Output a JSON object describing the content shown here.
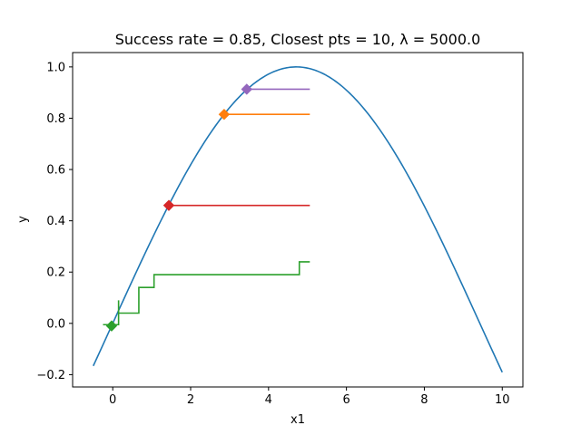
{
  "chart_data": {
    "type": "line",
    "title": "Success rate = 0.85, Closest pts = 10, λ = 5000.0",
    "xlabel": "x1",
    "ylabel": "y",
    "xlim": [
      -1.03,
      10.53
    ],
    "ylim": [
      -0.248,
      1.056
    ],
    "x_ticks": [
      0,
      2,
      4,
      6,
      8,
      10
    ],
    "x_tick_labels": [
      "0",
      "2",
      "4",
      "6",
      "8",
      "10"
    ],
    "y_ticks": [
      -0.2,
      0.0,
      0.2,
      0.4,
      0.6,
      0.8,
      1.0
    ],
    "y_tick_labels": [
      "−0.2",
      "0.0",
      "0.2",
      "0.4",
      "0.6",
      "0.8",
      "1.0"
    ],
    "grid": false,
    "curve": {
      "function": "sin(x/3)",
      "x_start": -0.5,
      "x_end": 10.0,
      "color": "#1f77b4"
    },
    "series": [
      {
        "color": "#2ca02c",
        "marker": {
          "x": -0.03,
          "y": -0.01
        },
        "points": [
          [
            -0.25,
            -0.005
          ],
          [
            -0.03,
            -0.005
          ],
          [
            -0.03,
            -0.005
          ],
          [
            0.15,
            -0.005
          ],
          [
            0.15,
            0.09
          ],
          [
            0.15,
            0.09
          ],
          [
            0.15,
            0.04
          ],
          [
            0.67,
            0.04
          ],
          [
            0.67,
            0.14
          ],
          [
            1.06,
            0.14
          ],
          [
            1.06,
            0.19
          ],
          [
            4.79,
            0.19
          ],
          [
            4.79,
            0.24
          ],
          [
            5.06,
            0.24
          ]
        ]
      },
      {
        "color": "#d62728",
        "marker": {
          "x": 1.44,
          "y": 0.46
        },
        "points": [
          [
            1.44,
            0.46
          ],
          [
            5.06,
            0.46
          ]
        ]
      },
      {
        "color": "#ff7f0e",
        "marker": {
          "x": 2.86,
          "y": 0.815
        },
        "points": [
          [
            2.86,
            0.815
          ],
          [
            5.06,
            0.815
          ]
        ]
      },
      {
        "color": "#9467bd",
        "marker": {
          "x": 3.44,
          "y": 0.913
        },
        "points": [
          [
            3.44,
            0.913
          ],
          [
            5.06,
            0.913
          ]
        ]
      }
    ]
  }
}
